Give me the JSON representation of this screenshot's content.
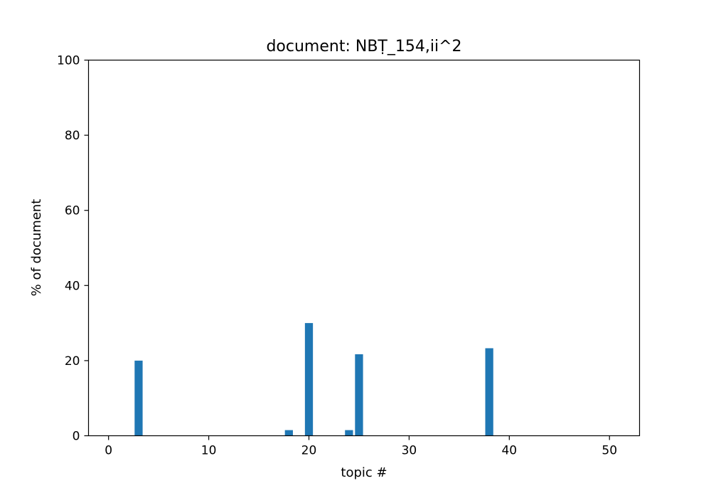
{
  "chart_data": {
    "type": "bar",
    "title": "document: NBṬ_154,ii^2",
    "xlabel": "topic #",
    "ylabel": "% of document",
    "xlim": [
      -2,
      53
    ],
    "ylim": [
      0,
      100
    ],
    "xticks": [
      0,
      10,
      20,
      30,
      40,
      50
    ],
    "yticks": [
      0,
      20,
      40,
      60,
      80,
      100
    ],
    "bar_width": 0.8,
    "bar_color": "#1f77b4",
    "grid": false,
    "bars": [
      {
        "x": 3,
        "value": 20
      },
      {
        "x": 18,
        "value": 1.5
      },
      {
        "x": 20,
        "value": 30
      },
      {
        "x": 24,
        "value": 1.5
      },
      {
        "x": 25,
        "value": 21.7
      },
      {
        "x": 38,
        "value": 23.3
      }
    ]
  }
}
